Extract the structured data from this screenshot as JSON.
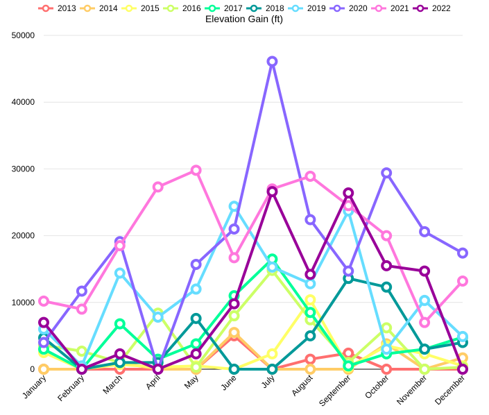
{
  "chart_data": {
    "type": "line",
    "title": "Elevation Gain (ft)",
    "xlabel": "",
    "ylabel": "",
    "ylim": [
      0,
      50000
    ],
    "yticks": [
      0,
      10000,
      20000,
      30000,
      40000,
      50000
    ],
    "grid": true,
    "legend_position": "top",
    "categories": [
      "January",
      "February",
      "March",
      "April",
      "May",
      "June",
      "July",
      "August",
      "September",
      "October",
      "November",
      "December"
    ],
    "series": [
      {
        "name": "2013",
        "color": "#ff6f6f",
        "values": [
          0,
          0,
          0,
          0,
          0,
          5000,
          0,
          1500,
          2400,
          0,
          0,
          0
        ]
      },
      {
        "name": "2014",
        "color": "#ffcc66",
        "values": [
          0,
          0,
          1000,
          0,
          0,
          5500,
          0,
          0,
          0,
          3800,
          0,
          1700
        ]
      },
      {
        "name": "2015",
        "color": "#ffff66",
        "values": [
          2500,
          0,
          700,
          300,
          500,
          0,
          2300,
          10400,
          300,
          3500,
          2300,
          500
        ]
      },
      {
        "name": "2016",
        "color": "#ccff66",
        "values": [
          3600,
          2700,
          1000,
          8400,
          300,
          8000,
          14800,
          7400,
          1000,
          6200,
          0,
          300
        ]
      },
      {
        "name": "2017",
        "color": "#00ff99",
        "values": [
          3000,
          0,
          6800,
          1500,
          3800,
          11000,
          16500,
          8500,
          500,
          2300,
          3000,
          4800
        ]
      },
      {
        "name": "2018",
        "color": "#009999",
        "values": [
          4700,
          0,
          1000,
          1000,
          7600,
          0,
          0,
          5000,
          13600,
          12300,
          3000,
          4000
        ]
      },
      {
        "name": "2019",
        "color": "#66ddff",
        "values": [
          6000,
          500,
          14400,
          7800,
          12000,
          24400,
          15300,
          12800,
          23700,
          3000,
          10300,
          4900
        ]
      },
      {
        "name": "2020",
        "color": "#8866ff",
        "values": [
          4000,
          11700,
          19100,
          0,
          15700,
          21000,
          46100,
          22400,
          14700,
          29400,
          20600,
          17400
        ]
      },
      {
        "name": "2021",
        "color": "#ff77dd",
        "values": [
          10200,
          9000,
          18500,
          27300,
          29800,
          16700,
          27000,
          28900,
          24500,
          20000,
          7000,
          13200
        ]
      },
      {
        "name": "2022",
        "color": "#990099",
        "values": [
          7000,
          0,
          2300,
          0,
          2300,
          9800,
          26600,
          14200,
          26400,
          15500,
          14700,
          0
        ]
      }
    ]
  }
}
